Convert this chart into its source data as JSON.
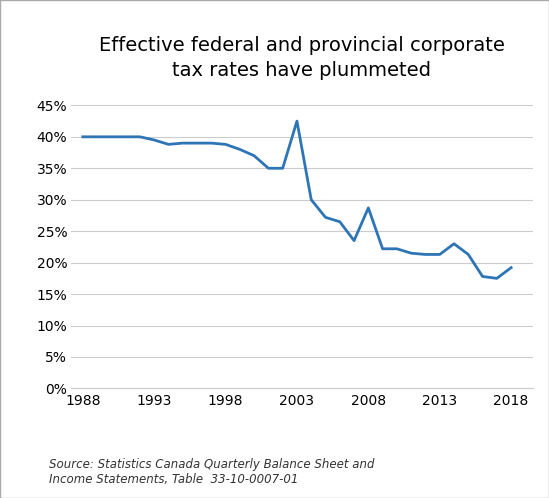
{
  "title": "Effective federal and provincial corporate\ntax rates have plummeted",
  "source_text": "Source: Statistics Canada Quarterly Balance Sheet and\nIncome Statements, Table  33-10-0007-01",
  "line_color": "#2E75B6",
  "line_width": 2.0,
  "background_color": "#FFFFFF",
  "years": [
    1988,
    1989,
    1990,
    1991,
    1992,
    1993,
    1994,
    1995,
    1996,
    1997,
    1998,
    1999,
    2000,
    2001,
    2002,
    2003,
    2004,
    2005,
    2006,
    2007,
    2008,
    2009,
    2010,
    2011,
    2012,
    2013,
    2014,
    2015,
    2016,
    2017,
    2018
  ],
  "values": [
    0.4,
    0.4,
    0.4,
    0.4,
    0.4,
    0.395,
    0.388,
    0.39,
    0.39,
    0.39,
    0.388,
    0.38,
    0.37,
    0.35,
    0.35,
    0.425,
    0.3,
    0.272,
    0.265,
    0.235,
    0.287,
    0.222,
    0.222,
    0.215,
    0.213,
    0.213,
    0.23,
    0.213,
    0.178,
    0.175,
    0.192
  ],
  "ylim": [
    0,
    0.475
  ],
  "yticks": [
    0.0,
    0.05,
    0.1,
    0.15,
    0.2,
    0.25,
    0.3,
    0.35,
    0.4,
    0.45
  ],
  "xticks": [
    1988,
    1993,
    1998,
    2003,
    2008,
    2013,
    2018
  ],
  "xlim": [
    1987.2,
    2019.5
  ],
  "grid_color": "#CCCCCC",
  "border_color": "#AAAAAA",
  "title_fontsize": 14,
  "tick_fontsize": 10,
  "source_fontsize": 8.5
}
